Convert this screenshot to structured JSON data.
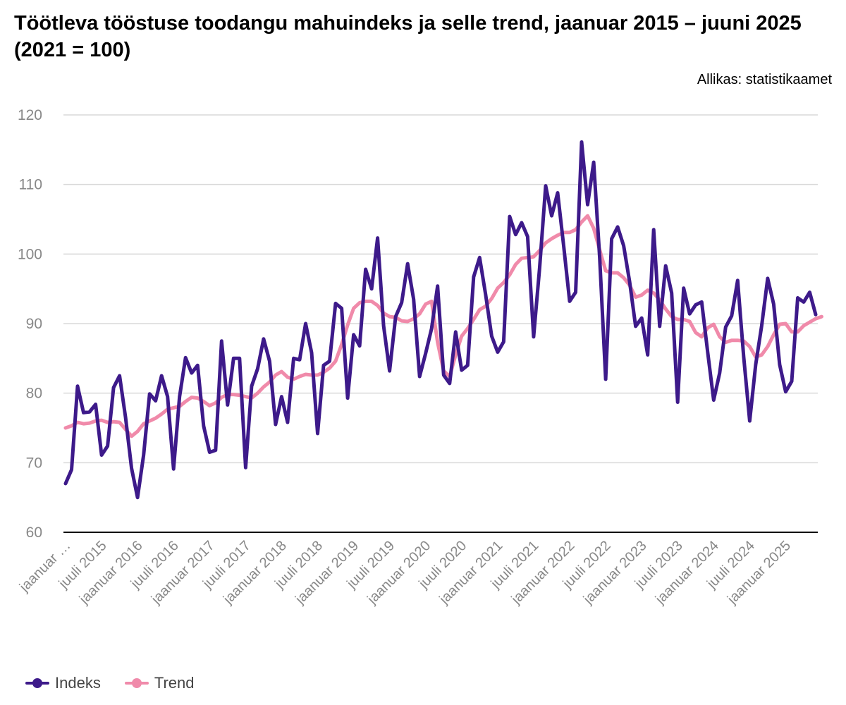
{
  "title": "Töötleva tööstuse toodangu mahuindeks ja selle trend, jaanuar 2015 – juuni 2025 (2021 = 100)",
  "source": "Allikas: statistikaamet",
  "colors": {
    "indeks": "#3d1a8a",
    "trend": "#f08aaa",
    "grid": "#d9d9d9",
    "axis": "#000000",
    "tick": "#888888"
  },
  "chart_data": {
    "type": "line",
    "title": "Töötleva tööstuse toodangu mahuindeks ja selle trend, jaanuar 2015 – juuni 2025 (2021 = 100)",
    "ylim": [
      60,
      120
    ],
    "yticks": [
      60,
      70,
      80,
      90,
      100,
      110,
      120
    ],
    "grid": true,
    "legend_position": "bottom-left",
    "x_tick_labels": [
      "jaanuar …",
      "juuli 2015",
      "jaanuar 2016",
      "juuli 2016",
      "jaanuar 2017",
      "juuli 2017",
      "jaanuar 2018",
      "juuli 2018",
      "jaanuar 2019",
      "juuli 2019",
      "jaanuar 2020",
      "juuli 2020",
      "jaanuar 2021",
      "juuli 2021",
      "jaanuar 2022",
      "juuli 2022",
      "jaanuar 2023",
      "juuli 2023",
      "jaanuar 2024",
      "juuli 2024",
      "jaanuar 2025"
    ],
    "series": [
      {
        "name": "Indeks",
        "values": [
          67,
          69,
          81,
          77.2,
          77.3,
          78.4,
          71.1,
          72.4,
          80.8,
          82.5,
          76.5,
          69.2,
          65,
          71.1,
          79.9,
          78.9,
          82.5,
          79.5,
          69.1,
          79.5,
          85.1,
          82.9,
          84,
          75.3,
          71.5,
          71.8,
          87.5,
          78.3,
          85,
          85,
          69.3,
          81,
          83.5,
          87.8,
          84.6,
          75.5,
          79.5,
          75.8,
          85,
          84.8,
          90,
          85.8,
          74.2,
          84,
          84.6,
          92.9,
          92.2,
          79.3,
          88.4,
          86.8,
          97.8,
          95,
          102.3,
          89.7,
          83.2,
          91,
          93,
          98.6,
          93.5,
          82.4,
          85.7,
          89.3,
          95.4,
          82.6,
          81.4,
          88.8,
          83.3,
          84,
          96.7,
          99.5,
          94.2,
          88.2,
          85.9,
          87.4,
          105.4,
          102.8,
          104.5,
          102.5,
          88.1,
          98,
          109.8,
          105.5,
          108.8,
          101.2,
          93.2,
          94.5,
          116.1,
          107.1,
          113.2,
          99.5,
          82,
          102.2,
          103.9,
          101.2,
          96,
          89.6,
          90.8,
          85.5,
          103.5,
          89.6,
          98.3,
          94.4,
          78.7,
          95.1,
          91.4,
          92.7,
          93.1,
          85.9,
          79,
          82.9,
          89.5,
          91.1,
          96.2,
          85.2,
          76,
          84.1,
          89.7,
          96.5,
          92.8,
          84.1,
          80.2,
          81.7,
          93.7,
          93.1,
          94.5,
          91.3
        ]
      },
      {
        "name": "Trend",
        "values": [
          75,
          75.3,
          75.8,
          75.6,
          75.7,
          76,
          76.1,
          75.8,
          75.9,
          75.8,
          74.8,
          73.8,
          74.5,
          75.6,
          76,
          76.4,
          77,
          77.7,
          77.9,
          78.1,
          78.8,
          79.4,
          79.3,
          78.8,
          78.2,
          78.6,
          79.4,
          79.8,
          79.8,
          79.7,
          79.5,
          79.3,
          80,
          80.9,
          81.6,
          82.6,
          83.1,
          82.3,
          82,
          82.4,
          82.7,
          82.6,
          82.6,
          83,
          83.6,
          84.6,
          87,
          89.8,
          92.2,
          93,
          93.2,
          93.2,
          92.6,
          91.5,
          91,
          90.9,
          90.4,
          90.3,
          90.7,
          91.4,
          92.8,
          93.2,
          87.3,
          83.2,
          82.4,
          85.5,
          88.2,
          89.3,
          90.6,
          92,
          92.5,
          93.6,
          95.1,
          95.9,
          97,
          98.5,
          99.4,
          99.5,
          99.6,
          100.5,
          101.6,
          102.2,
          102.7,
          103.1,
          103.1,
          103.5,
          104.6,
          105.5,
          103.7,
          100.6,
          97.6,
          97.3,
          97.3,
          96.6,
          95.5,
          93.8,
          94.1,
          94.8,
          94.4,
          93.4,
          92.1,
          91,
          90.6,
          90.6,
          90.3,
          88.7,
          88.1,
          89.4,
          89.9,
          88.1,
          87.3,
          87.6,
          87.6,
          87.5,
          86.7,
          85.2,
          85.5,
          86.7,
          88.4,
          89.9,
          90,
          88.8,
          88.8,
          89.7,
          90.2,
          90.7,
          91
        ]
      }
    ]
  }
}
